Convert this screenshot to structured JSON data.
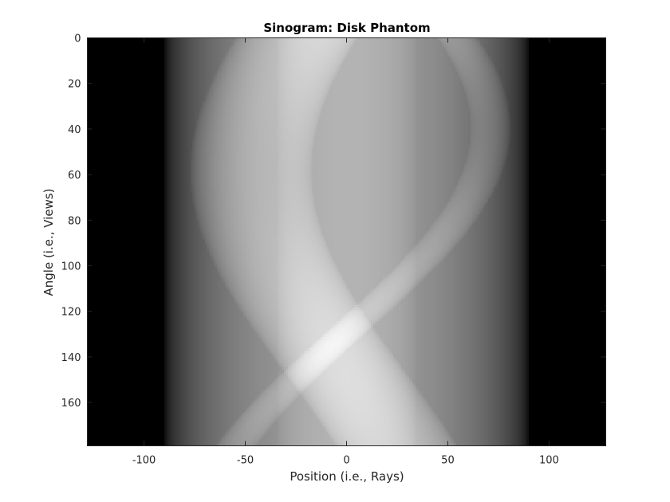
{
  "chart_data": {
    "type": "heatmap",
    "title": "Sinogram: Disk Phantom",
    "xlabel": "Position (i.e., Rays)",
    "ylabel": "Angle (i.e., Views)",
    "xlim": [
      -128,
      128
    ],
    "ylim": [
      0,
      179
    ],
    "y_direction": "down",
    "xticks": [
      -100,
      -50,
      0,
      50,
      100
    ],
    "yticks": [
      0,
      20,
      40,
      60,
      80,
      100,
      120,
      140,
      160
    ],
    "colormap": "gray",
    "grid": false,
    "phantom": {
      "support_radius": 110,
      "disks": [
        {
          "cx": 0,
          "cy": 0,
          "r": 90,
          "value": 1.0
        },
        {
          "cx": 0,
          "cy": 0,
          "r": 34,
          "value": 0.35
        },
        {
          "cx": -25,
          "cy": -40,
          "r": 30,
          "value": 0.8
        },
        {
          "cx": 55,
          "cy": 45,
          "r": 10,
          "value": 1.4
        }
      ],
      "angle_step_deg": 1,
      "rays": 256
    }
  }
}
